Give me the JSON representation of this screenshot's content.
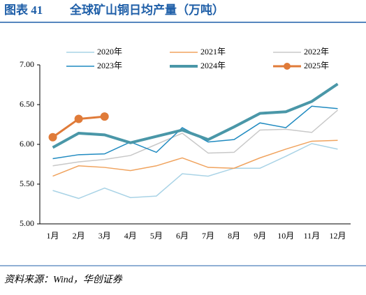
{
  "header": {
    "label": "图表 41",
    "title": "全球矿山铜日均产量（万吨）"
  },
  "chart_data": {
    "type": "line",
    "categories": [
      "1月",
      "2月",
      "3月",
      "4月",
      "5月",
      "6月",
      "7月",
      "8月",
      "9月",
      "10月",
      "11月",
      "12月"
    ],
    "ylim": [
      5,
      7
    ],
    "yticks": [
      {
        "value": 5,
        "label": "5.00"
      },
      {
        "value": 5.5,
        "label": "5.50"
      },
      {
        "value": 6,
        "label": "6.00"
      },
      {
        "value": 6.5,
        "label": "6.50"
      },
      {
        "value": 7,
        "label": "7.00"
      }
    ],
    "series": [
      {
        "name": "2020年",
        "color": "#a9d3e6",
        "values": [
          5.42,
          5.32,
          5.45,
          5.33,
          5.35,
          5.63,
          5.6,
          5.7,
          5.7,
          5.85,
          6.01,
          5.94
        ]
      },
      {
        "name": "2021年",
        "color": "#f0a35e",
        "values": [
          5.6,
          5.73,
          5.71,
          5.67,
          5.73,
          5.83,
          5.71,
          5.7,
          5.83,
          5.94,
          6.04,
          6.05
        ]
      },
      {
        "name": "2022年",
        "color": "#c8c8c8",
        "values": [
          5.73,
          5.78,
          5.81,
          5.86,
          6.0,
          6.14,
          5.89,
          5.9,
          6.18,
          6.19,
          6.15,
          6.43
        ]
      },
      {
        "name": "2023年",
        "color": "#1f8ac0",
        "values": [
          5.82,
          5.87,
          5.88,
          6.03,
          5.9,
          6.21,
          6.03,
          6.06,
          6.27,
          6.21,
          6.48,
          6.45
        ]
      },
      {
        "name": "2024年",
        "color": "#4a97a8",
        "values": [
          5.96,
          6.14,
          6.12,
          6.02,
          6.1,
          6.18,
          6.06,
          6.22,
          6.39,
          6.41,
          6.54,
          6.76
        ]
      },
      {
        "name": "2025年",
        "color": "#e07b39",
        "values": [
          6.09,
          6.32,
          6.35,
          null,
          null,
          null,
          null,
          null,
          null,
          null,
          null,
          null
        ]
      }
    ]
  },
  "source": "资料来源：Wind，华创证券"
}
